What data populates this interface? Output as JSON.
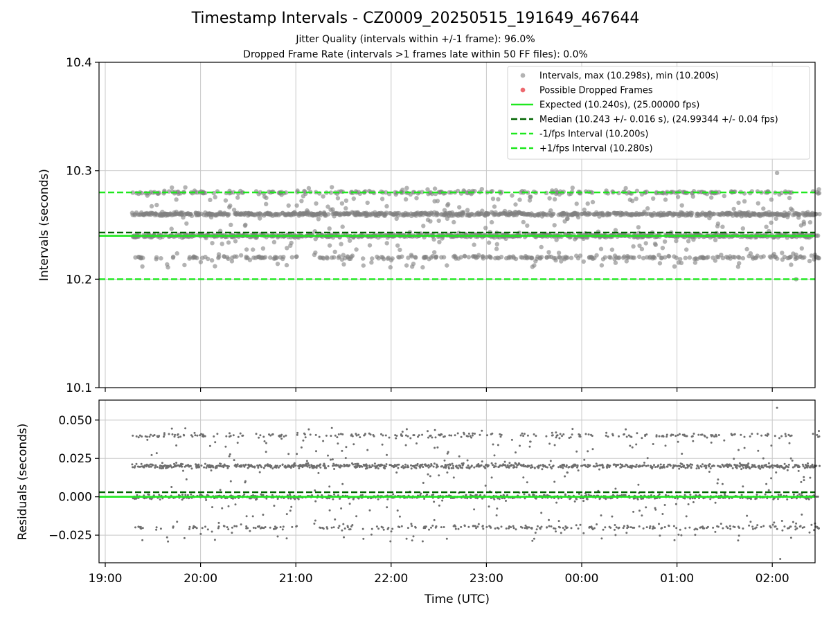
{
  "title": "Timestamp Intervals - CZ0009_20250515_191649_467644",
  "subtitle_1": "Jitter Quality (intervals within +/-1 frame): 96.0%",
  "subtitle_2": "Dropped Frame Rate (intervals >1 frames late within 50 FF files): 0.0%",
  "colors": {
    "points": "#808080",
    "dropped": "#e8444b",
    "expected": "#1ee81e",
    "median": "#006400",
    "bounds": "#1ee81e",
    "grid": "#c8c8c8"
  },
  "chart_data": [
    {
      "type": "scatter",
      "name": "intervals",
      "ylabel": "Intervals (seconds)",
      "xlabel": "",
      "ylim": [
        10.1,
        10.4
      ],
      "yticks": [
        "10.1",
        "10.2",
        "10.3",
        "10.4"
      ],
      "x_range_hours": [
        "19:00",
        "02:30"
      ],
      "data_start": "19:17",
      "data_end": "02:30",
      "grid": true,
      "legend_position": "upper-right",
      "cluster_levels": [
        10.22,
        10.24,
        10.26,
        10.28
      ],
      "lines": {
        "expected": 10.24,
        "median": 10.243,
        "minus_1_fps": 10.2,
        "plus_1_fps": 10.28
      },
      "max_interval": 10.298,
      "min_interval": 10.2,
      "legend": [
        {
          "kind": "dot-gray",
          "label": "Intervals, max (10.298s), min (10.200s)"
        },
        {
          "kind": "dot-red",
          "label": "Possible Dropped Frames"
        },
        {
          "kind": "solid-green",
          "label": "Expected (10.240s), (25.00000 fps)"
        },
        {
          "kind": "dashed-darkgreen",
          "label": "Median (10.243 +/- 0.016 s), (24.99344 +/- 0.04 fps)"
        },
        {
          "kind": "dashed-green",
          "label": "-1/fps Interval (10.200s)"
        },
        {
          "kind": "dashed-green",
          "label": "+1/fps Interval (10.280s)"
        }
      ]
    },
    {
      "type": "scatter",
      "name": "residuals",
      "ylabel": "Residuals (seconds)",
      "xlabel": "Time (UTC)",
      "ylim": [
        -0.043,
        0.063
      ],
      "yticks": [
        "−0.025",
        "0.000",
        "0.025",
        "0.050"
      ],
      "ytick_values": [
        -0.025,
        0.0,
        0.025,
        0.05
      ],
      "xticks": [
        "19:00",
        "20:00",
        "21:00",
        "22:00",
        "23:00",
        "00:00",
        "01:00",
        "02:00"
      ],
      "lines": {
        "zero": 0.0,
        "median": 0.003
      },
      "residual_levels": [
        -0.02,
        0.0,
        0.02,
        0.04
      ],
      "grid": true
    }
  ]
}
